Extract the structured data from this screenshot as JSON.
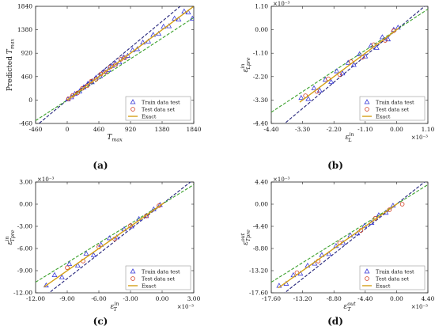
{
  "charts": [
    {
      "panel_label": "(a)",
      "xlabel": "T_max",
      "ylabel": "Predicted T_max",
      "x_multiplier": "",
      "y_multiplier": "",
      "xticks": [
        "-460",
        "0",
        "460",
        "920",
        "1380",
        "1840"
      ],
      "yticks": [
        "-460",
        "0",
        "460",
        "920",
        "1380",
        "1840"
      ],
      "legend": [
        "Train data test",
        "Test data set",
        "Exact"
      ]
    },
    {
      "panel_label": "(b)",
      "xlabel": "ε_L^{in}",
      "ylabel": "ε_{Lpre}^{in}",
      "x_multiplier": "×10⁻³",
      "y_multiplier": "×10⁻³",
      "xticks": [
        "-4.40",
        "-3.30",
        "-2.20",
        "-1.10",
        "0.00",
        "1.10"
      ],
      "yticks": [
        "-4.40",
        "-3.30",
        "-2.20",
        "-1.10",
        "0.00",
        "1.10"
      ],
      "legend": [
        "Train data test",
        "Test data set",
        "Exact"
      ]
    },
    {
      "panel_label": "(c)",
      "xlabel": "ε_T^{in}",
      "ylabel": "ε_{Tpre}^{in}",
      "x_multiplier": "×10⁻³",
      "y_multiplier": "×10⁻³",
      "xticks": [
        "-12.00",
        "-9.00",
        "-6.00",
        "-3.00",
        "0.00",
        "3.00"
      ],
      "yticks": [
        "-12.00",
        "-9.00",
        "-6.00",
        "-3.00",
        "0.00",
        "3.00"
      ],
      "legend": [
        "Train data test",
        "Test data set",
        "Exact"
      ]
    },
    {
      "panel_label": "(d)",
      "xlabel": "ε_T^{out}",
      "ylabel": "ε_{Tpre}^{out}",
      "x_multiplier": "×10⁻³",
      "y_multiplier": "×10⁻³",
      "xticks": [
        "-17.60",
        "-13.20",
        "-8.80",
        "-4.40",
        "0.00",
        "4.40"
      ],
      "yticks": [
        "-17.60",
        "-13.20",
        "-8.80",
        "-4.40",
        "0.00",
        "4.40"
      ],
      "legend": [
        "Train data test",
        "Test data set",
        "Exact"
      ]
    }
  ],
  "colors": {
    "train": "#3a3ad8",
    "test": "#d03a1e",
    "exact": "#d4a017",
    "upper_bound": "#23237a",
    "lower_bound": "#3aa02a"
  },
  "chart_data": [
    {
      "type": "scatter",
      "xlabel": "T_max",
      "ylabel": "Predicted T_max",
      "xlim": [
        -460,
        1840
      ],
      "ylim": [
        -460,
        1840
      ],
      "series": [
        {
          "name": "Train data test",
          "marker": "triangle",
          "x": [
            10,
            60,
            110,
            180,
            240,
            300,
            360,
            420,
            480,
            540,
            600,
            650,
            700,
            760,
            820,
            880,
            950,
            1020,
            1100,
            1180,
            1250,
            1330,
            1400,
            1480,
            1560,
            1620,
            1700,
            1760,
            1820
          ],
          "y": [
            15,
            55,
            120,
            170,
            250,
            320,
            350,
            440,
            470,
            560,
            590,
            670,
            720,
            740,
            840,
            870,
            980,
            1000,
            1130,
            1150,
            1280,
            1300,
            1440,
            1450,
            1600,
            1580,
            1740,
            1720,
            1600
          ]
        },
        {
          "name": "Test data set",
          "marker": "circle",
          "x": [
            20,
            80,
            150,
            220,
            290,
            350,
            420,
            490,
            560,
            630,
            700,
            780,
            840
          ],
          "y": [
            25,
            90,
            140,
            230,
            280,
            370,
            410,
            510,
            550,
            650,
            690,
            800,
            830
          ]
        },
        {
          "name": "Exact",
          "marker": "line",
          "x": [
            0,
            1840
          ],
          "y": [
            0,
            1840
          ]
        }
      ],
      "legend_position": "bottom-right"
    },
    {
      "type": "scatter",
      "xlabel": "ε_L^{in}",
      "ylabel": "ε_{Lpre}^{in}",
      "xlim": [
        -4.4,
        1.1
      ],
      "ylim": [
        -4.4,
        1.1
      ],
      "series": [
        {
          "name": "Train data test",
          "marker": "triangle",
          "x": [
            -3.35,
            -3.1,
            -2.9,
            -2.7,
            -2.5,
            -2.3,
            -2.1,
            -1.9,
            -1.7,
            -1.5,
            -1.3,
            -1.1,
            -0.9,
            -0.7,
            -0.5,
            -0.3,
            -0.1,
            0.05
          ],
          "y": [
            -3.2,
            -3.25,
            -2.75,
            -2.85,
            -2.35,
            -2.45,
            -1.95,
            -2.05,
            -1.55,
            -1.65,
            -1.15,
            -1.25,
            -0.75,
            -0.85,
            -0.35,
            -0.45,
            0.0,
            0.1
          ]
        },
        {
          "name": "Test data set",
          "marker": "circle",
          "x": [
            -3.2,
            -2.8,
            -2.4,
            -2.0,
            -1.6,
            -1.2,
            -0.8,
            -0.4,
            -0.1
          ],
          "y": [
            -3.1,
            -2.9,
            -2.3,
            -2.1,
            -1.5,
            -1.3,
            -0.7,
            -0.5,
            -0.05
          ]
        },
        {
          "name": "Exact",
          "marker": "line",
          "x": [
            -3.4,
            0.1
          ],
          "y": [
            -3.4,
            0.1
          ]
        }
      ],
      "legend_position": "bottom-right"
    },
    {
      "type": "scatter",
      "xlabel": "ε_T^{in}",
      "ylabel": "ε_{Tpre}^{in}",
      "xlim": [
        -12.0,
        3.0
      ],
      "ylim": [
        -12.0,
        3.0
      ],
      "series": [
        {
          "name": "Train data test",
          "marker": "triangle",
          "x": [
            -11.0,
            -10.2,
            -9.5,
            -8.8,
            -8.0,
            -7.2,
            -6.5,
            -5.8,
            -5.0,
            -4.3,
            -3.6,
            -2.9,
            -2.2,
            -1.5,
            -0.8,
            -0.2
          ],
          "y": [
            -11.0,
            -9.6,
            -9.9,
            -8.1,
            -8.3,
            -6.7,
            -6.9,
            -5.5,
            -4.6,
            -4.5,
            -3.4,
            -3.0,
            -2.0,
            -1.6,
            -0.7,
            -0.1
          ]
        },
        {
          "name": "Test data set",
          "marker": "circle",
          "x": [
            -9.0,
            -7.5,
            -6.0,
            -4.5,
            -3.0,
            -1.5,
            -0.3
          ],
          "y": [
            -8.6,
            -7.7,
            -5.8,
            -4.7,
            -2.9,
            -1.6,
            -0.2
          ]
        },
        {
          "name": "Exact",
          "marker": "line",
          "x": [
            -11.2,
            0.2
          ],
          "y": [
            -11.2,
            0.2
          ]
        }
      ],
      "legend_position": "bottom-right"
    },
    {
      "type": "scatter",
      "xlabel": "ε_T^{out}",
      "ylabel": "ε_{Tpre}^{out}",
      "xlim": [
        -17.6,
        4.4
      ],
      "ylim": [
        -17.6,
        4.4
      ],
      "series": [
        {
          "name": "Train data test",
          "marker": "triangle",
          "x": [
            -16.5,
            -15.5,
            -14.5,
            -13.5,
            -12.5,
            -11.5,
            -10.5,
            -9.5,
            -8.5,
            -7.5,
            -6.5,
            -5.5,
            -4.5,
            -3.5,
            -2.5,
            -1.5,
            -0.5
          ],
          "y": [
            -16.2,
            -15.8,
            -14.1,
            -13.8,
            -12.2,
            -11.8,
            -10.1,
            -9.9,
            -8.3,
            -7.7,
            -6.2,
            -5.8,
            -4.3,
            -3.7,
            -2.2,
            -1.7,
            -0.3
          ]
        },
        {
          "name": "Test data set",
          "marker": "circle",
          "x": [
            -14.0,
            -11.0,
            -8.0,
            -5.0,
            -3.0,
            -1.0,
            0.8
          ],
          "y": [
            -13.6,
            -11.3,
            -7.7,
            -5.2,
            -2.8,
            -1.1,
            0.0
          ]
        },
        {
          "name": "Exact",
          "marker": "line",
          "x": [
            -16.6,
            0.2
          ],
          "y": [
            -16.6,
            0.2
          ]
        }
      ],
      "legend_position": "bottom-right"
    }
  ]
}
